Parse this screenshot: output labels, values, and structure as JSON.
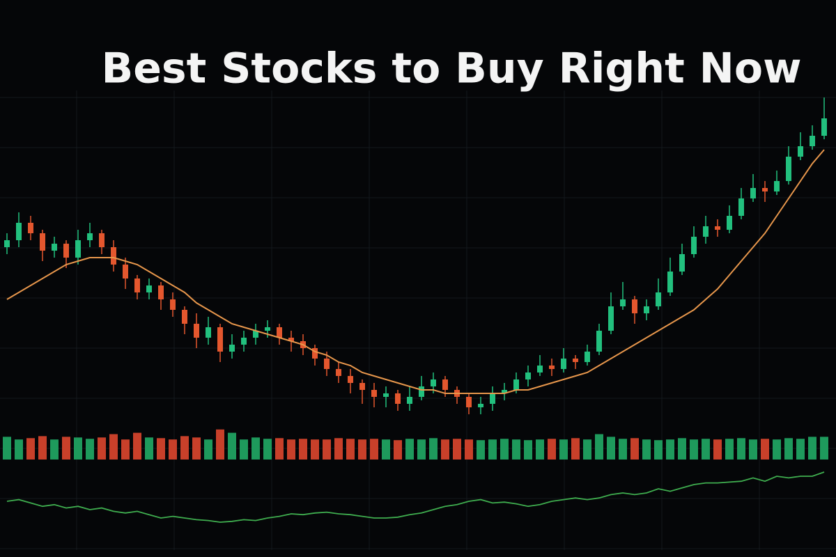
{
  "chart_data": [
    {
      "type": "candlestick",
      "title": "Best Stocks to Buy Right Now",
      "open": [
        53,
        55,
        60,
        57,
        52,
        54,
        50,
        55,
        57,
        53,
        48,
        44,
        40,
        42,
        38,
        35,
        31,
        27,
        30,
        23,
        25,
        27,
        29,
        30,
        27,
        26,
        24,
        21,
        18,
        16,
        14,
        12,
        10,
        11,
        8,
        10,
        13,
        15,
        12,
        10,
        7,
        8,
        11,
        12,
        15,
        17,
        19,
        18,
        21,
        20,
        23,
        29,
        36,
        38,
        34,
        36,
        40,
        46,
        51,
        56,
        59,
        58,
        62,
        67,
        70,
        69,
        72,
        79,
        82,
        85
      ],
      "high": [
        57,
        63,
        62,
        58,
        56,
        55,
        58,
        60,
        58,
        55,
        50,
        45,
        44,
        43,
        40,
        36,
        34,
        33,
        31,
        28,
        29,
        31,
        32,
        31,
        29,
        28,
        25,
        23,
        20,
        18,
        15,
        14,
        13,
        12,
        13,
        16,
        17,
        16,
        13,
        11,
        10,
        13,
        14,
        17,
        19,
        22,
        21,
        24,
        22,
        25,
        31,
        40,
        43,
        39,
        38,
        44,
        50,
        54,
        59,
        62,
        61,
        65,
        70,
        74,
        72,
        75,
        82,
        86,
        88,
        96
      ],
      "low": [
        51,
        53,
        55,
        49,
        50,
        47,
        48,
        53,
        51,
        46,
        41,
        38,
        38,
        35,
        33,
        28,
        24,
        25,
        20,
        21,
        23,
        25,
        27,
        25,
        23,
        22,
        19,
        16,
        14,
        11,
        8,
        7,
        7,
        6,
        6,
        9,
        11,
        10,
        8,
        5,
        5,
        6,
        9,
        11,
        13,
        16,
        16,
        17,
        18,
        19,
        22,
        28,
        35,
        31,
        32,
        35,
        39,
        45,
        50,
        54,
        56,
        57,
        61,
        66,
        66,
        68,
        71,
        78,
        81,
        84
      ],
      "close": [
        55,
        60,
        57,
        52,
        54,
        50,
        55,
        57,
        53,
        48,
        44,
        40,
        42,
        38,
        35,
        31,
        27,
        30,
        23,
        25,
        27,
        29,
        30,
        27,
        26,
        24,
        21,
        18,
        16,
        14,
        12,
        10,
        11,
        8,
        10,
        13,
        15,
        12,
        10,
        7,
        8,
        11,
        12,
        15,
        17,
        19,
        18,
        21,
        20,
        23,
        29,
        36,
        38,
        34,
        36,
        40,
        46,
        51,
        56,
        59,
        58,
        62,
        67,
        70,
        69,
        72,
        79,
        82,
        85,
        90
      ],
      "up_color": "#22c07e",
      "down_color": "#e4572e",
      "ylim": [
        0,
        100
      ],
      "grid": true,
      "series": [
        {
          "color": "#e8974c",
          "values": [
            38,
            40,
            42,
            44,
            46,
            48,
            49,
            50,
            50,
            50,
            49,
            48,
            46,
            44,
            42,
            40,
            37,
            35,
            33,
            31,
            30,
            29,
            28,
            27,
            26,
            25,
            23,
            22,
            20,
            19,
            17,
            16,
            15,
            14,
            13,
            12,
            12,
            11,
            11,
            11,
            11,
            11,
            11,
            12,
            12,
            13,
            14,
            15,
            16,
            17,
            19,
            21,
            23,
            25,
            27,
            29,
            31,
            33,
            35,
            38,
            41,
            45,
            49,
            53,
            57,
            62,
            67,
            72,
            77,
            81
          ]
        }
      ]
    },
    {
      "type": "bar",
      "values": [
        34,
        30,
        32,
        35,
        30,
        34,
        33,
        31,
        33,
        38,
        30,
        40,
        33,
        32,
        30,
        35,
        33,
        30,
        45,
        40,
        30,
        33,
        31,
        32,
        30,
        31,
        30,
        30,
        32,
        31,
        30,
        31,
        30,
        29,
        31,
        30,
        32,
        30,
        31,
        30,
        29,
        30,
        31,
        30,
        29,
        30,
        31,
        30,
        32,
        30,
        38,
        34,
        31,
        32,
        30,
        29,
        30,
        32,
        30,
        31,
        30,
        31,
        32,
        30,
        31,
        30,
        32,
        31,
        34,
        34
      ],
      "up_color": "#1e9a5c",
      "down_color": "#c8402a",
      "ylim": [
        0,
        50
      ]
    },
    {
      "type": "line",
      "color": "#3fae4f",
      "ylim": [
        0,
        100
      ],
      "values": [
        50,
        52,
        48,
        44,
        46,
        42,
        44,
        40,
        42,
        38,
        36,
        38,
        34,
        30,
        32,
        30,
        28,
        27,
        25,
        26,
        28,
        27,
        30,
        32,
        35,
        34,
        36,
        37,
        35,
        34,
        32,
        30,
        30,
        31,
        34,
        36,
        40,
        44,
        46,
        50,
        52,
        48,
        49,
        47,
        44,
        46,
        50,
        52,
        54,
        52,
        54,
        58,
        60,
        58,
        60,
        65,
        62,
        66,
        70,
        72,
        72,
        73,
        74,
        78,
        74,
        80,
        78,
        80,
        80,
        85
      ]
    }
  ]
}
